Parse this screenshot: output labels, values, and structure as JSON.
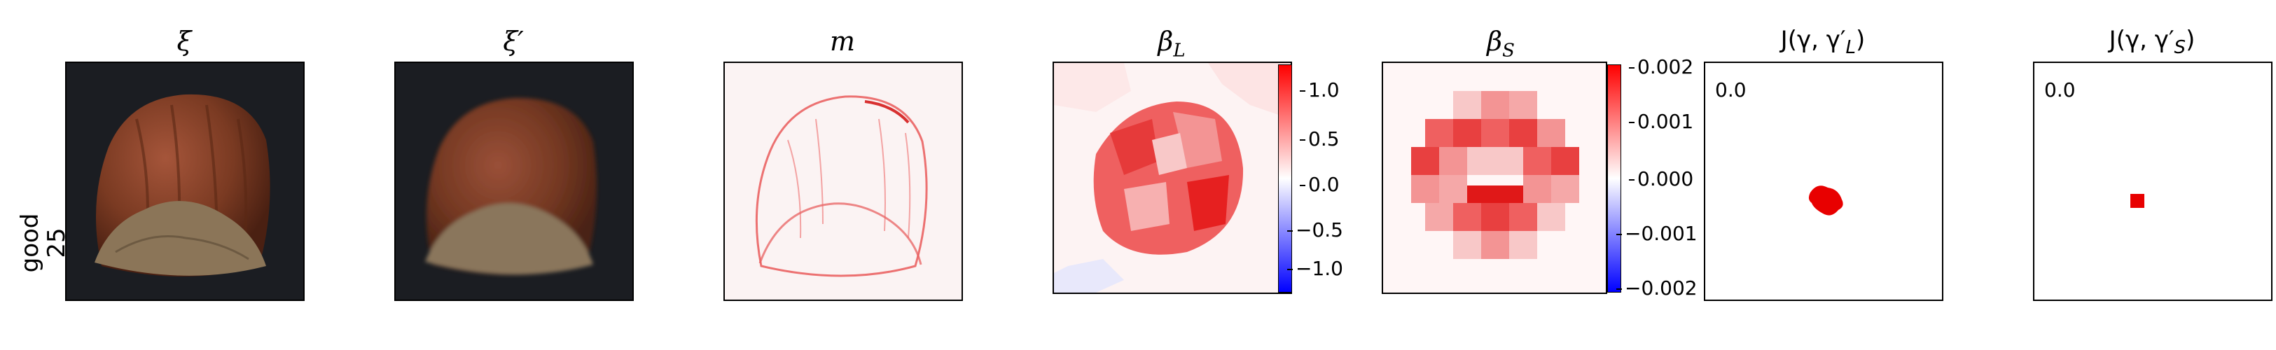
{
  "row_label": {
    "line1": "good",
    "line2": "25"
  },
  "panels": {
    "xi": {
      "title": "ξ"
    },
    "xi_prime": {
      "title": "ξ′"
    },
    "m": {
      "title": "m"
    },
    "beta_l": {
      "title_main": "β",
      "title_sub": "L",
      "colorbar_ticks": [
        "1.0",
        "0.5",
        "0.0",
        "−0.5",
        "−1.0"
      ],
      "colorbar_range": [
        -1.25,
        1.25
      ]
    },
    "beta_s": {
      "title_main": "β",
      "title_sub": "S",
      "colorbar_ticks": [
        "0.002",
        "0.001",
        "0.000",
        "−0.001",
        "−0.002"
      ],
      "colorbar_range": [
        -0.002,
        0.002
      ]
    },
    "j_l": {
      "title": "J(γ, γ′",
      "title_sub": "L",
      "title_end": ")",
      "value": "0.0"
    },
    "j_s": {
      "title": "J(γ, γ′",
      "title_sub": "S",
      "title_end": ")",
      "value": "0.0"
    }
  },
  "colors": {
    "positive": "#ff0000",
    "negative": "#0000ff",
    "background_dark": "#1b1d22",
    "hazelnut": "#7a3a22",
    "shell_cap": "#8b7558"
  }
}
